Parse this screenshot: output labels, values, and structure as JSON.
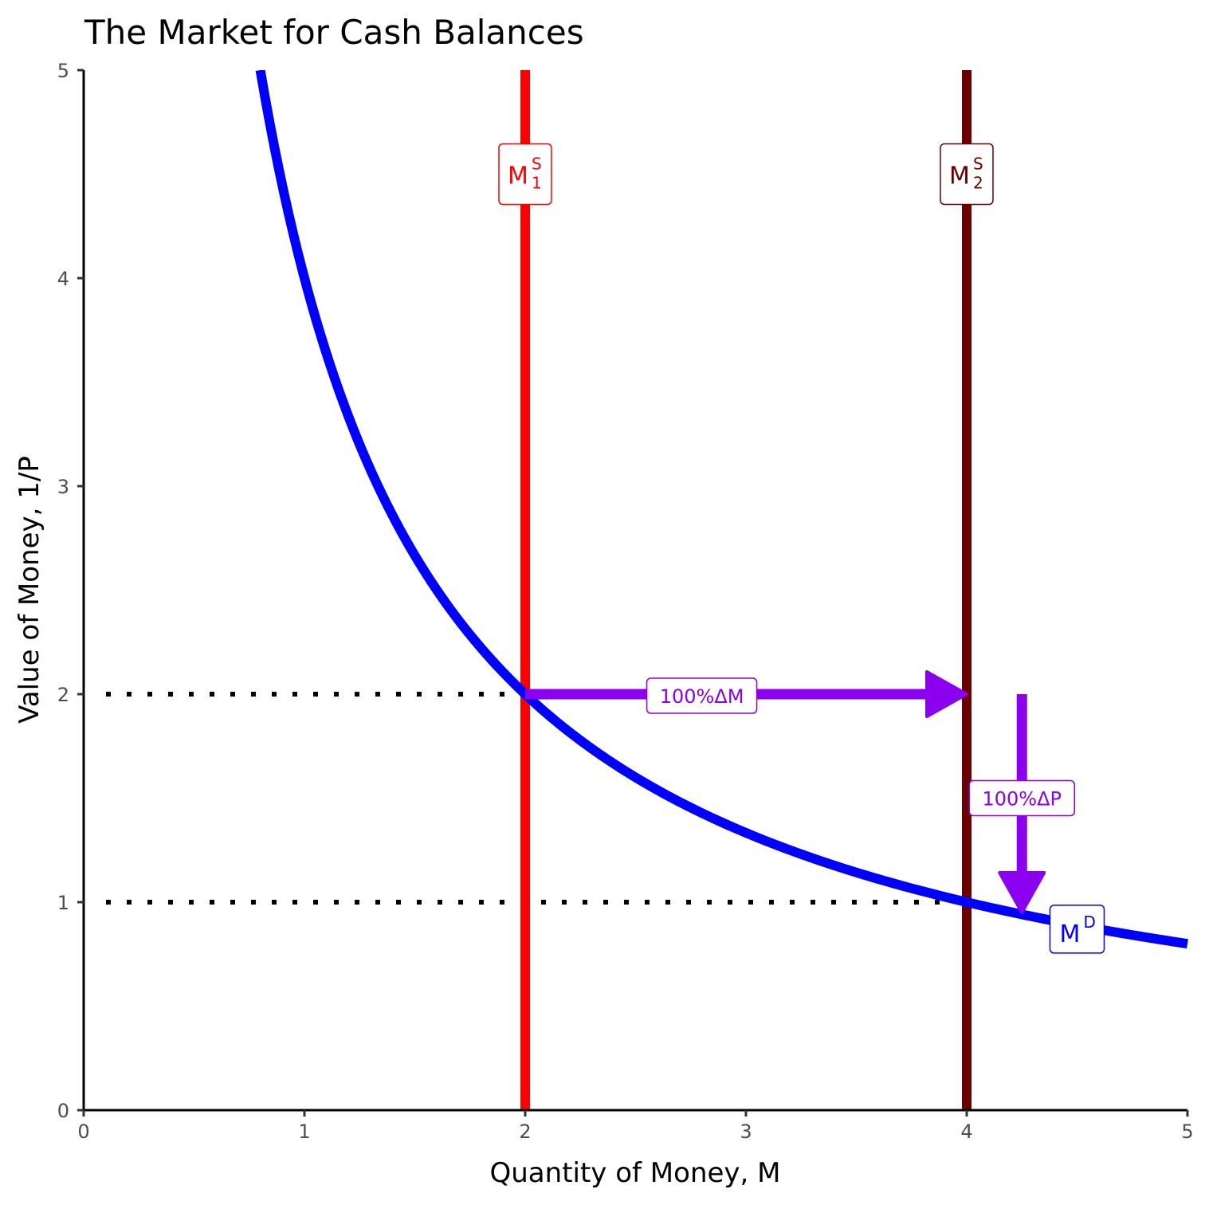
{
  "chart_data": {
    "type": "line",
    "title": "The Market for Cash Balances",
    "xlabel": "Quantity of Money, M",
    "ylabel": "Value of Money, 1/P",
    "xlim": [
      0,
      5
    ],
    "ylim": [
      0,
      5
    ],
    "x_ticks": [
      "0",
      "1",
      "2",
      "3",
      "4",
      "5"
    ],
    "y_ticks": [
      "0",
      "1",
      "2",
      "3",
      "4",
      "5"
    ],
    "grid": false,
    "series": [
      {
        "name": "M^D",
        "label_main": "M",
        "label_sup": "D",
        "kind": "curve",
        "equation": "y = 4 / x",
        "x_range": [
          0.8,
          5
        ],
        "color": "#0000ff"
      },
      {
        "name": "M^S_1",
        "label_main": "M",
        "label_sup": "S",
        "label_sub": "1",
        "kind": "vertical",
        "x": 2,
        "color": "#ff0000"
      },
      {
        "name": "M^S_2",
        "label_main": "M",
        "label_sup": "S",
        "label_sub": "2",
        "kind": "vertical",
        "x": 4,
        "color": "#6b0000"
      }
    ],
    "reference_lines": [
      {
        "kind": "dotted-horizontal",
        "y": 2,
        "x_from": 0,
        "x_to": 2
      },
      {
        "kind": "dotted-horizontal",
        "y": 1,
        "x_from": 0,
        "x_to": 4
      }
    ],
    "annotations": [
      {
        "label": "100%ΔM",
        "kind": "arrow",
        "from": [
          2,
          2
        ],
        "to": [
          4,
          2
        ],
        "color": "#8b00ee"
      },
      {
        "label": "100%ΔP",
        "kind": "arrow",
        "from": [
          4.25,
          2
        ],
        "to": [
          4.25,
          0.95
        ],
        "color": "#8b00ee"
      }
    ],
    "label_positions": {
      "M^S_1": [
        2,
        4.5
      ],
      "M^S_2": [
        4,
        4.5
      ],
      "M^D": [
        4.5,
        0.87
      ]
    }
  }
}
